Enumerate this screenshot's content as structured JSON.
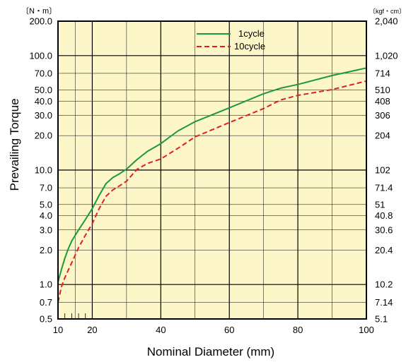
{
  "chart_data": {
    "type": "line",
    "xlabel": "Nominal Diameter (mm)",
    "ylabel": "Prevailing Torque",
    "y_unit_left": "〔N・m〕",
    "y_unit_right": "〔kgf・cm〕",
    "x_scale": "linear",
    "y_scale": "log",
    "xlim": [
      10,
      100
    ],
    "ylim": [
      0.5,
      200
    ],
    "grid": true,
    "legend_position": "top-right",
    "background_color": "#fdf6c8",
    "x_ticks": [
      10,
      20,
      40,
      60,
      80,
      100
    ],
    "x_minor_grid": [
      15,
      30,
      50,
      70,
      90
    ],
    "x_minor_ticks": [
      12,
      14,
      16,
      18
    ],
    "y_ticks_left": [
      {
        "value": 0.5,
        "label": "0.5"
      },
      {
        "value": 0.7,
        "label": "0.7"
      },
      {
        "value": 1.0,
        "label": "1.0"
      },
      {
        "value": 2.0,
        "label": "2.0"
      },
      {
        "value": 3.0,
        "label": "3.0"
      },
      {
        "value": 4.0,
        "label": "4.0"
      },
      {
        "value": 5.0,
        "label": "5.0"
      },
      {
        "value": 7.0,
        "label": "7.0"
      },
      {
        "value": 10.0,
        "label": "10.0"
      },
      {
        "value": 20.0,
        "label": "20.0"
      },
      {
        "value": 30.0,
        "label": "30.0"
      },
      {
        "value": 40.0,
        "label": "40.0"
      },
      {
        "value": 50.0,
        "label": "50.0"
      },
      {
        "value": 70.0,
        "label": "70.0"
      },
      {
        "value": 100.0,
        "label": "100.0"
      },
      {
        "value": 200.0,
        "label": "200.0"
      }
    ],
    "y_ticks_right": [
      {
        "value": 0.5,
        "label": "5.1"
      },
      {
        "value": 0.7,
        "label": "7.14"
      },
      {
        "value": 1.0,
        "label": "10.2"
      },
      {
        "value": 2.0,
        "label": "20.4"
      },
      {
        "value": 3.0,
        "label": "30.6"
      },
      {
        "value": 4.0,
        "label": "40.8"
      },
      {
        "value": 5.0,
        "label": "51"
      },
      {
        "value": 7.0,
        "label": "71.4"
      },
      {
        "value": 10.0,
        "label": "102"
      },
      {
        "value": 20.0,
        "label": "204"
      },
      {
        "value": 30.0,
        "label": "306"
      },
      {
        "value": 40.0,
        "label": "408"
      },
      {
        "value": 50.0,
        "label": "510"
      },
      {
        "value": 70.0,
        "label": "714"
      },
      {
        "value": 100.0,
        "label": "1,020"
      },
      {
        "value": 200.0,
        "label": "2,040"
      }
    ],
    "series": [
      {
        "name": "1cycle",
        "color": "#1a9a3a",
        "style": "solid",
        "x": [
          10,
          11,
          12,
          13,
          14,
          16,
          18,
          20,
          22,
          24,
          26,
          28,
          30,
          33,
          36,
          40,
          45,
          50,
          60,
          70,
          75,
          80,
          90,
          100
        ],
        "y": [
          1.05,
          1.35,
          1.7,
          2.05,
          2.4,
          3.0,
          3.7,
          4.6,
          6.0,
          7.6,
          8.6,
          9.3,
          10.2,
          12.3,
          14.5,
          17.0,
          22.0,
          26.5,
          35.0,
          46.5,
          52.0,
          56.0,
          67.0,
          78.0
        ]
      },
      {
        "name": "10cycle",
        "color": "#e02020",
        "style": "dashed",
        "x": [
          10,
          11,
          12,
          14,
          16,
          18,
          20,
          22,
          24,
          26,
          28,
          30,
          33,
          36,
          40,
          45,
          50,
          60,
          70,
          75,
          80,
          90,
          100
        ],
        "y": [
          0.7,
          0.95,
          1.15,
          1.55,
          2.1,
          2.7,
          3.4,
          4.6,
          5.9,
          6.7,
          7.3,
          8.0,
          10.1,
          11.4,
          12.5,
          15.5,
          19.5,
          26.0,
          34.5,
          41.0,
          45.0,
          50.5,
          60.0
        ]
      }
    ]
  }
}
